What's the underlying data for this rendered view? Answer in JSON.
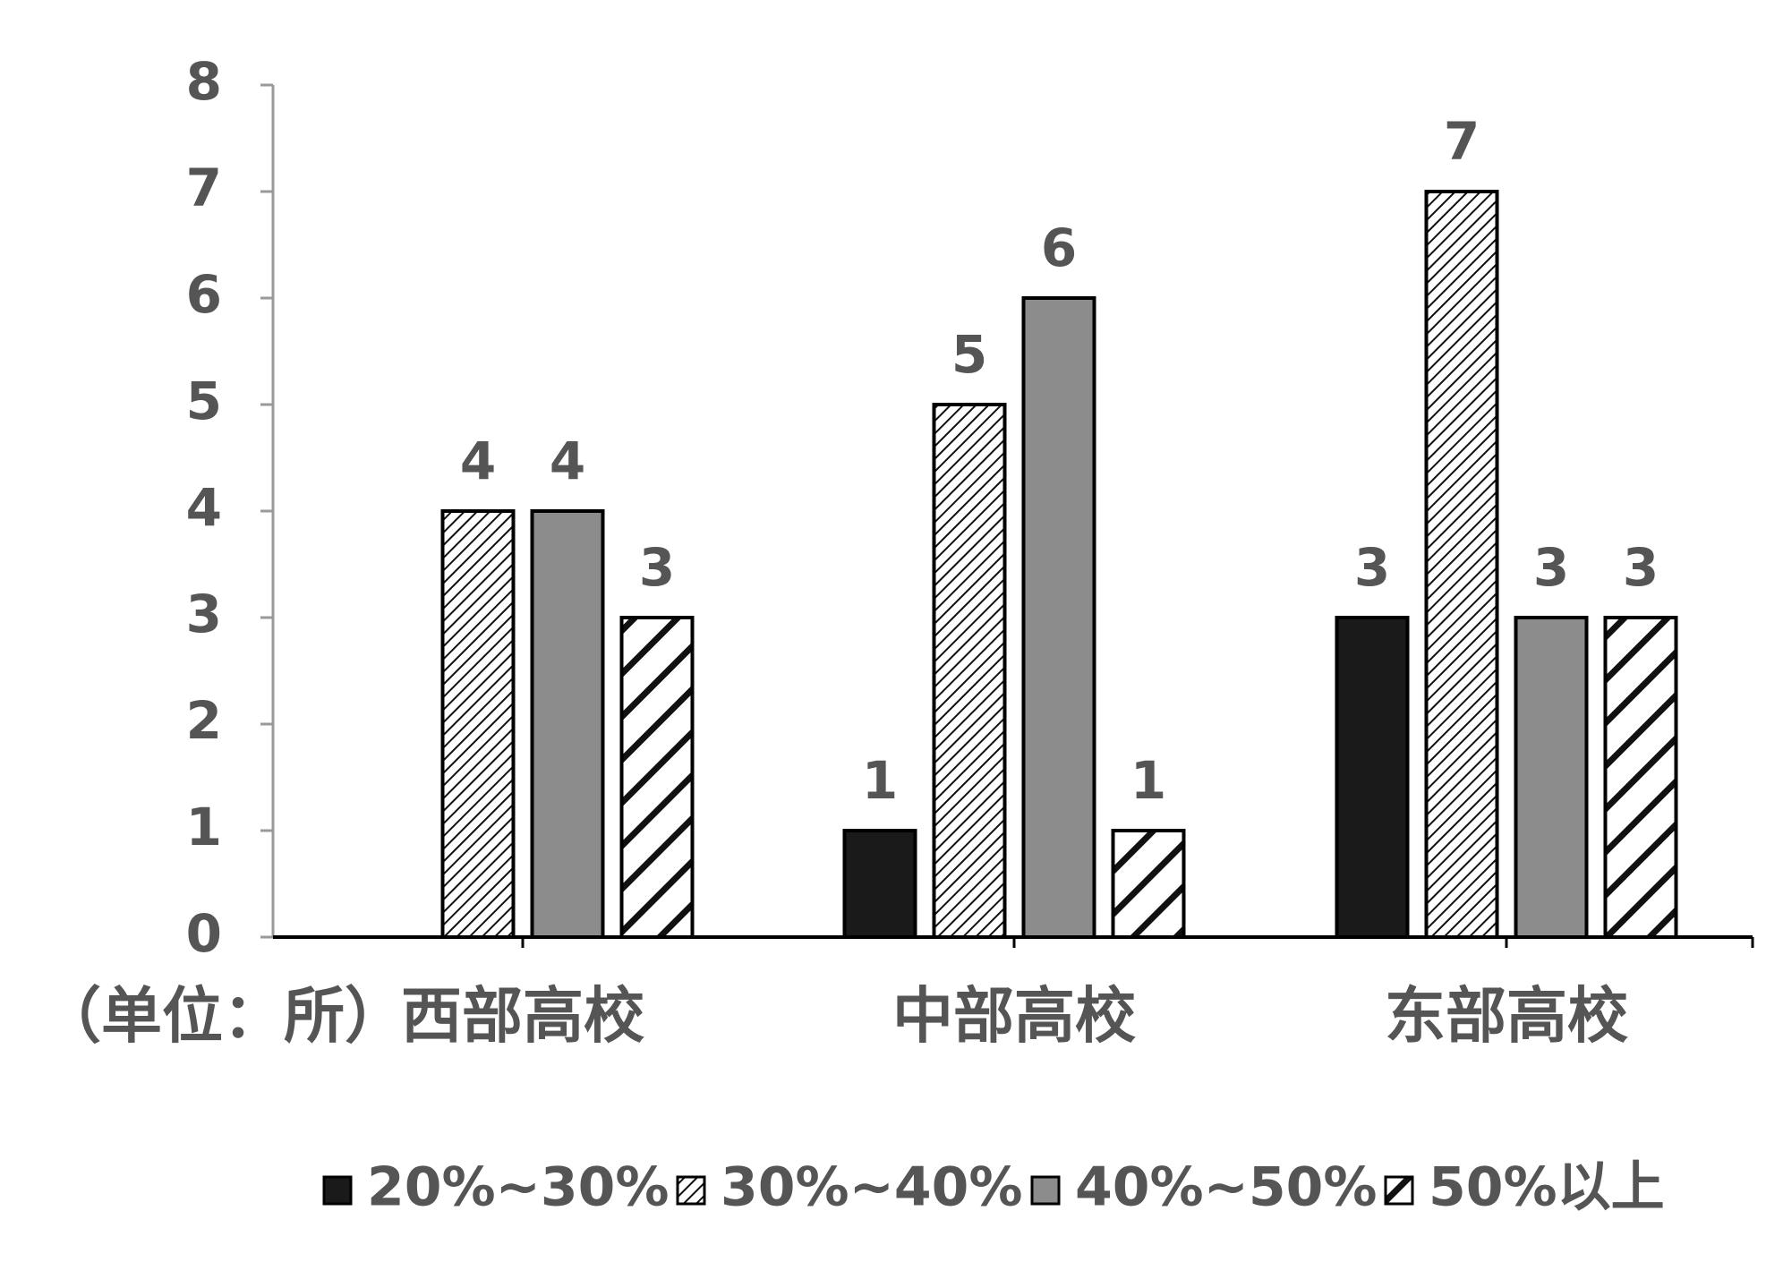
{
  "chart_data": {
    "type": "bar",
    "title": "",
    "xlabel": "",
    "ylabel": "",
    "unit_label": "（单位：所）",
    "categories": [
      "西部高校",
      "中部高校",
      "东部高校"
    ],
    "series": [
      {
        "name": "20%~30%",
        "values": [
          0,
          1,
          3
        ],
        "pattern": "solid-black"
      },
      {
        "name": "30%~40%",
        "values": [
          4,
          5,
          7
        ],
        "pattern": "dense-diagonal"
      },
      {
        "name": "40%~50%",
        "values": [
          4,
          6,
          3
        ],
        "pattern": "solid-gray"
      },
      {
        "name": "50%以上",
        "values": [
          3,
          1,
          3
        ],
        "pattern": "wide-diagonal"
      }
    ],
    "ylim": [
      0,
      8
    ],
    "yticks": [
      0,
      1,
      2,
      3,
      4,
      5,
      6,
      7,
      8
    ],
    "grid": false,
    "legend_position": "bottom",
    "data_labels": [
      [
        null,
        4,
        4,
        3
      ],
      [
        1,
        5,
        6,
        1
      ],
      [
        3,
        7,
        3,
        3
      ]
    ],
    "colors": {
      "axis": "#999999",
      "text": "#555555",
      "black": "#1a1a1a",
      "gray": "#8c8c8c",
      "white": "#ffffff"
    }
  }
}
